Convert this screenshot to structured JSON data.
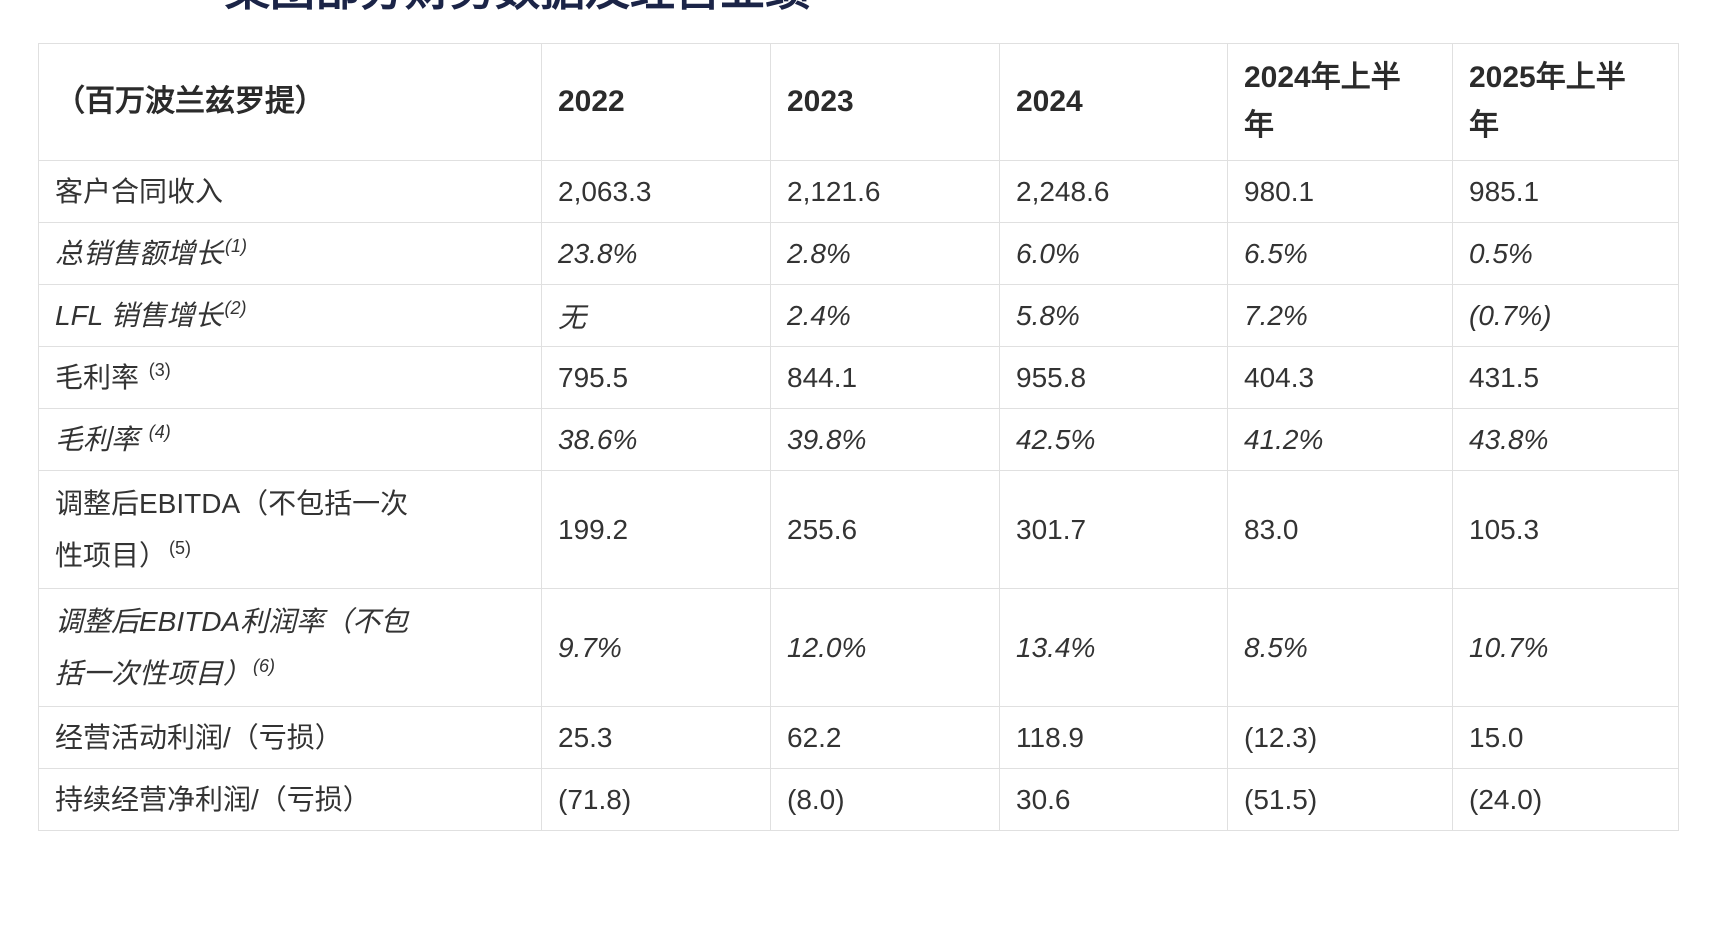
{
  "page": {
    "title_partial": "集团部分财务数据及经营业绩"
  },
  "colors": {
    "title_navy": "#1b2447",
    "body_text": "#333333",
    "grid_border": "#e0e0e0",
    "background": "#ffffff"
  },
  "table": {
    "columns": [
      {
        "label": "（百万波兰兹罗提）"
      },
      {
        "label": "2022"
      },
      {
        "label": "2023"
      },
      {
        "label": "2024"
      },
      {
        "label": "2024年上半年"
      },
      {
        "label": "2025年上半年"
      }
    ],
    "rows": [
      {
        "label": "客户合同收入",
        "sup": "",
        "italic": false,
        "values": [
          "2,063.3",
          "2,121.6",
          "2,248.6",
          "980.1",
          "985.1"
        ]
      },
      {
        "label": "总销售额增长",
        "sup": "(1)",
        "italic": true,
        "values": [
          "23.8%",
          "2.8%",
          "6.0%",
          "6.5%",
          "0.5%"
        ]
      },
      {
        "label": "LFL 销售增长",
        "sup": "(2)",
        "italic": true,
        "values": [
          "无",
          "2.4%",
          "5.8%",
          "7.2%",
          "(0.7%)"
        ]
      },
      {
        "label": "毛利率 ",
        "sup": "(3)",
        "italic": false,
        "values": [
          "795.5",
          "844.1",
          "955.8",
          "404.3",
          "431.5"
        ]
      },
      {
        "label": "毛利率 ",
        "sup": "(4)",
        "italic": true,
        "values": [
          "38.6%",
          "39.8%",
          "42.5%",
          "41.2%",
          "43.8%"
        ]
      },
      {
        "label": "调整后EBITDA（不包括一次性项目）",
        "sup": "(5)",
        "italic": false,
        "values": [
          "199.2",
          "255.6",
          "301.7",
          "83.0",
          "105.3"
        ]
      },
      {
        "label": "调整后EBITDA利润率（不包括一次性项目）",
        "sup": "(6)",
        "italic": true,
        "values": [
          "9.7%",
          "12.0%",
          "13.4%",
          "8.5%",
          "10.7%"
        ]
      },
      {
        "label": "经营活动利润/（亏损）",
        "sup": "",
        "italic": false,
        "values": [
          "25.3",
          "62.2",
          "118.9",
          "(12.3)",
          "15.0"
        ]
      },
      {
        "label": "持续经营净利润/（亏损）",
        "sup": "",
        "italic": false,
        "values": [
          "(71.8)",
          "(8.0)",
          "30.6",
          "(51.5)",
          "(24.0)"
        ]
      }
    ]
  }
}
